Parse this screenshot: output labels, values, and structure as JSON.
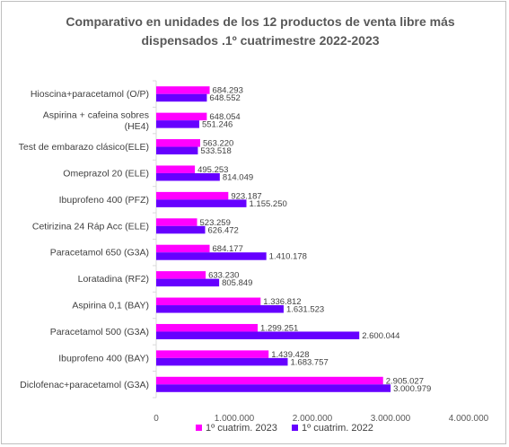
{
  "chart_data": {
    "type": "bar",
    "orientation": "horizontal",
    "title": "Comparativo en unidades de los 12 productos de venta libre más dispensados .1º cuatrimestre 2022-2023",
    "categories": [
      "Hioscina+paracetamol (O/P)",
      "Aspirina + cafeina sobres (HE4)",
      "Test de embarazo clásico(ELE)",
      "Omeprazol 20 (ELE)",
      "Ibuprofeno 400 (PFZ)",
      "Cetirizina 24 Ráp Acc (ELE)",
      "Paracetamol 650 (G3A)",
      "Loratadina (RF2)",
      "Aspirina 0,1 (BAY)",
      "Paracetamol 500 (G3A)",
      "Ibuprofeno 400 (BAY)",
      "Diclofenac+paracetamol (G3A)"
    ],
    "series": [
      {
        "name": "1º cuatrim. 2023",
        "color": "#ff00ff",
        "values": [
          684293,
          648054,
          563220,
          495253,
          923187,
          523259,
          684177,
          633230,
          1336812,
          1299251,
          1439428,
          2905027
        ],
        "labels": [
          "684.293",
          "648.054",
          "563.220",
          "495.253",
          "923.187",
          "523.259",
          "684.177",
          "633.230",
          "1.336.812",
          "1.299.251",
          "1.439.428",
          "2.905.027"
        ]
      },
      {
        "name": "1º cuatrim. 2022",
        "color": "#6600ff",
        "values": [
          648552,
          551246,
          533518,
          814049,
          1155250,
          626472,
          1410178,
          805849,
          1631523,
          2600044,
          1683757,
          3000979
        ],
        "labels": [
          "648.552",
          "551.246",
          "533.518",
          "814.049",
          "1.155.250",
          "626.472",
          "1.410.178",
          "805.849",
          "1.631.523",
          "2.600.044",
          "1.683.757",
          "3.000.979"
        ]
      }
    ],
    "xlim": [
      0,
      4000000
    ],
    "xticks": [
      0,
      1000000,
      2000000,
      3000000,
      4000000
    ],
    "xtick_labels": [
      "0",
      "1.000.000",
      "2.000.000",
      "3.000.000",
      "4.000.000"
    ],
    "grid": false,
    "legend_position": "bottom"
  }
}
